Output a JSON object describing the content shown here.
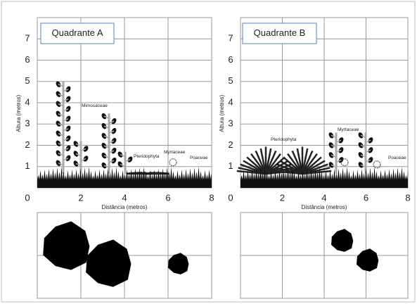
{
  "panels": [
    {
      "title": "Quadrante A",
      "y_axis_label": "Altura (metros)",
      "x_axis_label": "Distância (metros)",
      "xticks": [
        0,
        2,
        4,
        6,
        8
      ],
      "yticks": [
        1,
        2,
        3,
        4,
        5,
        6,
        7
      ],
      "plant_labels": [
        "Mimosaceae",
        "Pteridophyta",
        "Myrtaceae",
        "Poaceae"
      ]
    },
    {
      "title": "Quadrante B",
      "y_axis_label": "Altura (metros)",
      "x_axis_label": "Distância (metros)",
      "xticks": [
        0,
        2,
        4,
        6,
        8
      ],
      "yticks": [
        1,
        2,
        3,
        4,
        5,
        6,
        7
      ],
      "plant_labels": [
        "Pteridophyta",
        "Myrtaceae",
        "Poaceae"
      ]
    }
  ]
}
